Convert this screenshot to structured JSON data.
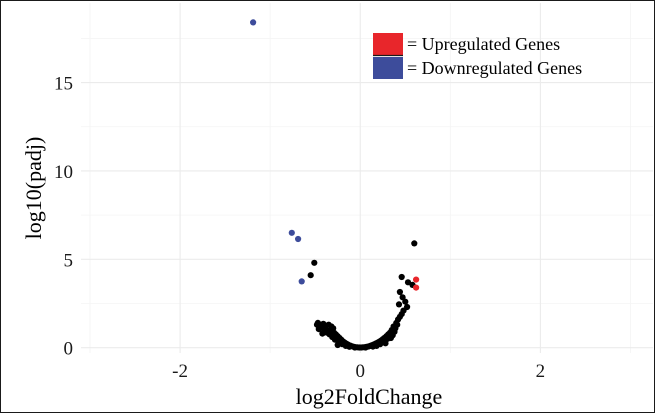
{
  "chart_data": {
    "type": "scatter",
    "xlabel": "log2FoldChange",
    "ylabel": "log10(padj)",
    "xlim": [
      -3.1,
      3.25
    ],
    "ylim": [
      -0.3,
      19.5
    ],
    "x_ticks": [
      -2,
      0,
      2
    ],
    "y_ticks": [
      0,
      5,
      10,
      15
    ],
    "grid": true,
    "legend_position": "top-right",
    "legend": [
      {
        "label": "= Upregulated Genes",
        "color": "#e8262b"
      },
      {
        "label": "= Downregulated Genes",
        "color": "#3d4c9b"
      }
    ],
    "colors": {
      "up": "#e8262b",
      "down": "#3d4c9b",
      "ns": "#000000"
    },
    "series": [
      {
        "category": "down",
        "points": [
          [
            -1.19,
            18.4
          ],
          [
            -0.76,
            6.5
          ],
          [
            -0.69,
            6.15
          ],
          [
            -0.65,
            3.75
          ]
        ]
      },
      {
        "category": "up",
        "points": [
          [
            0.62,
            3.85
          ],
          [
            0.62,
            3.4
          ]
        ]
      },
      {
        "category": "ns",
        "points": [
          [
            0.6,
            5.9
          ],
          [
            -0.51,
            4.8
          ],
          [
            -0.55,
            4.1
          ],
          [
            0.46,
            4.0
          ],
          [
            0.53,
            3.7
          ],
          [
            0.58,
            3.55
          ],
          [
            0.44,
            3.15
          ],
          [
            0.47,
            2.85
          ],
          [
            0.5,
            2.6
          ],
          [
            0.43,
            2.45
          ],
          [
            0.52,
            2.3
          ],
          [
            0.48,
            2.1
          ],
          [
            0.46,
            1.9
          ],
          [
            0.44,
            1.75
          ],
          [
            0.42,
            1.6
          ],
          [
            0.4,
            1.4
          ],
          [
            0.37,
            1.2
          ],
          [
            0.35,
            1.0
          ],
          [
            -0.47,
            1.4
          ],
          [
            -0.44,
            1.3
          ],
          [
            -0.41,
            1.35
          ],
          [
            -0.38,
            1.25
          ],
          [
            -0.35,
            1.3
          ],
          [
            -0.32,
            1.2
          ],
          [
            -0.3,
            1.1
          ],
          [
            -0.43,
            1.15
          ],
          [
            -0.46,
            1.05
          ],
          [
            -0.39,
            1.0
          ],
          [
            -0.36,
            0.95
          ],
          [
            -0.33,
            1.0
          ],
          [
            -0.29,
            0.85
          ],
          [
            -0.27,
            0.75
          ],
          [
            -0.25,
            0.65
          ],
          [
            -0.23,
            0.55
          ],
          [
            -0.21,
            0.45
          ],
          [
            -0.19,
            0.35
          ],
          [
            -0.17,
            0.28
          ],
          [
            -0.15,
            0.22
          ],
          [
            -0.13,
            0.16
          ],
          [
            -0.11,
            0.12
          ],
          [
            -0.09,
            0.08
          ],
          [
            -0.07,
            0.05
          ],
          [
            -0.05,
            0.03
          ],
          [
            -0.03,
            0.02
          ],
          [
            -0.01,
            0.01
          ],
          [
            0.01,
            0.01
          ],
          [
            0.03,
            0.02
          ],
          [
            0.05,
            0.03
          ],
          [
            0.07,
            0.05
          ],
          [
            0.09,
            0.07
          ],
          [
            0.11,
            0.1
          ],
          [
            0.13,
            0.14
          ],
          [
            0.15,
            0.18
          ],
          [
            0.17,
            0.23
          ],
          [
            0.19,
            0.28
          ],
          [
            0.21,
            0.34
          ],
          [
            0.23,
            0.4
          ],
          [
            0.25,
            0.48
          ],
          [
            0.27,
            0.56
          ],
          [
            0.29,
            0.65
          ],
          [
            0.31,
            0.75
          ],
          [
            0.33,
            0.85
          ],
          [
            0.3,
            0.5
          ],
          [
            0.26,
            0.3
          ],
          [
            0.22,
            0.2
          ],
          [
            -0.2,
            0.2
          ],
          [
            -0.24,
            0.3
          ],
          [
            -0.28,
            0.45
          ],
          [
            -0.31,
            0.6
          ],
          [
            -0.34,
            0.75
          ],
          [
            -0.37,
            0.85
          ],
          [
            -0.4,
            0.9
          ],
          [
            -0.42,
            0.8
          ],
          [
            -0.12,
            0.05
          ],
          [
            -0.16,
            0.1
          ],
          [
            0.14,
            0.06
          ],
          [
            0.18,
            0.1
          ],
          [
            -0.06,
            0.01
          ],
          [
            0.06,
            0.01
          ],
          [
            -0.25,
            0.15
          ],
          [
            0.28,
            0.25
          ],
          [
            0.34,
            0.55
          ],
          [
            0.36,
            0.7
          ],
          [
            0.38,
            0.9
          ],
          [
            0.39,
            1.1
          ],
          [
            0.41,
            1.3
          ],
          [
            -0.45,
            1.2
          ],
          [
            -0.48,
            1.3
          ]
        ]
      }
    ]
  }
}
